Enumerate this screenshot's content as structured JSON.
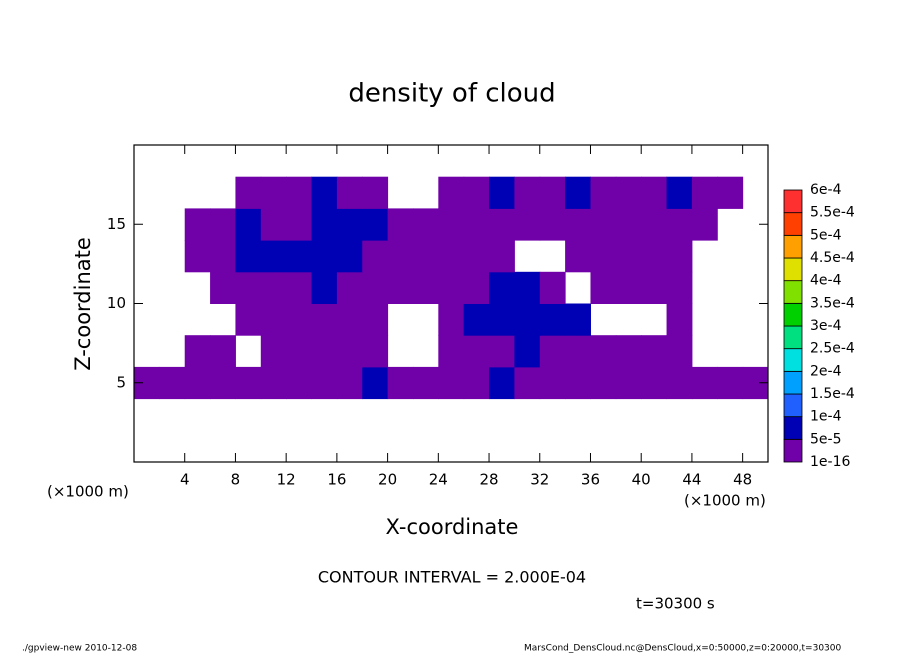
{
  "chart_data": {
    "type": "contour",
    "title": "density of cloud",
    "x_label": "X-coordinate",
    "y_label": "Z-coordinate",
    "unit_label": "(×1000 m)",
    "contour_interval": "CONTOUR INTERVAL = 2.000E-04",
    "time_label": "t=30300 s",
    "footer_left": "./gpview-new   2010-12-08",
    "footer_right": "MarsCond_DensCloud.nc@DensCloud,x=0:50000,z=0:20000,t=30300",
    "xlim": [
      0,
      50
    ],
    "ylim": [
      0,
      20
    ],
    "xticks": [
      4,
      8,
      12,
      16,
      20,
      24,
      28,
      32,
      36,
      40,
      44,
      48
    ],
    "yticks": [
      5,
      10,
      15
    ],
    "x": [
      1,
      3,
      5,
      7,
      9,
      11,
      13,
      15,
      17,
      19,
      21,
      23,
      25,
      27,
      29,
      31,
      33,
      35,
      37,
      39,
      41,
      43,
      45,
      47,
      49
    ],
    "z": [
      1,
      3,
      5,
      7,
      9,
      11,
      13,
      15,
      17,
      19
    ],
    "values": [
      [
        0,
        0,
        0,
        0,
        0,
        0,
        0,
        0,
        0,
        0,
        0,
        0,
        0,
        0,
        0,
        0,
        0,
        0,
        0,
        0,
        0,
        0,
        0,
        0,
        0
      ],
      [
        0,
        0,
        0,
        0,
        0,
        0,
        0,
        0,
        0,
        0,
        0,
        0,
        0,
        0,
        0,
        0,
        0,
        0,
        0,
        0,
        0,
        0,
        0,
        0,
        0
      ],
      [
        1e-05,
        1e-05,
        1e-05,
        1e-05,
        1e-05,
        1e-05,
        1e-05,
        1e-05,
        1e-05,
        6e-05,
        1e-05,
        1e-05,
        1e-05,
        1e-05,
        5e-05,
        1e-05,
        1e-05,
        1e-05,
        1e-05,
        1e-05,
        1e-05,
        1e-05,
        1e-05,
        1e-05,
        1e-05
      ],
      [
        0,
        0,
        1e-05,
        1e-05,
        0,
        1e-05,
        1e-05,
        1e-05,
        1e-05,
        1e-05,
        0,
        0,
        1e-05,
        1e-05,
        1e-05,
        6e-05,
        1e-05,
        1e-05,
        1e-05,
        1e-05,
        1e-05,
        1e-05,
        0,
        0,
        0
      ],
      [
        0,
        0,
        0,
        0,
        1e-05,
        1e-05,
        1e-05,
        1e-05,
        1e-05,
        1e-05,
        0,
        0,
        1e-05,
        5e-05,
        8e-05,
        8e-05,
        8e-05,
        5e-05,
        0,
        0,
        0,
        1e-05,
        0,
        0,
        0
      ],
      [
        0,
        0,
        0,
        1e-05,
        1e-05,
        1e-05,
        1e-05,
        5e-05,
        1e-05,
        1e-05,
        1e-05,
        1e-05,
        1e-05,
        1e-05,
        6e-05,
        5e-05,
        1e-05,
        0,
        1e-05,
        1e-05,
        1e-05,
        1e-05,
        0,
        0,
        0
      ],
      [
        0,
        0,
        1e-05,
        1e-05,
        6e-05,
        5e-05,
        7e-05,
        9e-05,
        6e-05,
        1e-05,
        1e-05,
        1e-05,
        1e-05,
        1e-05,
        1e-05,
        0,
        0,
        1e-05,
        1e-05,
        1e-05,
        1e-05,
        1e-05,
        0,
        0,
        0
      ],
      [
        0,
        0,
        1e-05,
        1e-05,
        5e-05,
        1e-05,
        1e-05,
        6e-05,
        8e-05,
        5e-05,
        1e-05,
        1e-05,
        1e-05,
        1e-05,
        1e-05,
        1e-05,
        1e-05,
        1e-05,
        1e-05,
        1e-05,
        1e-05,
        1e-05,
        1e-05,
        0,
        0
      ],
      [
        0,
        0,
        0,
        0,
        1e-05,
        1e-05,
        1e-05,
        5e-05,
        1e-05,
        1e-05,
        0,
        0,
        1e-05,
        1e-05,
        5e-05,
        1e-05,
        1e-05,
        5e-05,
        1e-05,
        1e-05,
        1e-05,
        5e-05,
        1e-05,
        1e-05,
        0
      ],
      [
        0,
        0,
        0,
        0,
        0,
        0,
        0,
        0,
        0,
        0,
        0,
        0,
        0,
        0,
        0,
        0,
        0,
        0,
        0,
        0,
        0,
        0,
        0,
        0,
        0
      ]
    ],
    "colorbar": {
      "levels": [
        {
          "value": 1e-16,
          "label": "1e-16"
        },
        {
          "value": 5e-05,
          "label": "5e-5"
        },
        {
          "value": 0.0001,
          "label": "1e-4"
        },
        {
          "value": 0.00015,
          "label": "1.5e-4"
        },
        {
          "value": 0.0002,
          "label": "2e-4"
        },
        {
          "value": 0.00025,
          "label": "2.5e-4"
        },
        {
          "value": 0.0003,
          "label": "3e-4"
        },
        {
          "value": 0.00035,
          "label": "3.5e-4"
        },
        {
          "value": 0.0004,
          "label": "4e-4"
        },
        {
          "value": 0.00045,
          "label": "4.5e-4"
        },
        {
          "value": 0.0005,
          "label": "5e-4"
        },
        {
          "value": 0.00055,
          "label": "5.5e-4"
        },
        {
          "value": 0.0006,
          "label": "6e-4"
        }
      ],
      "colors": [
        "#7000a8",
        "#0000b4",
        "#2060ff",
        "#00a0ff",
        "#00e0e0",
        "#00e080",
        "#00d000",
        "#80e000",
        "#e0e000",
        "#ffa000",
        "#ff4000",
        "#ff3030",
        "#ff9090"
      ]
    }
  }
}
